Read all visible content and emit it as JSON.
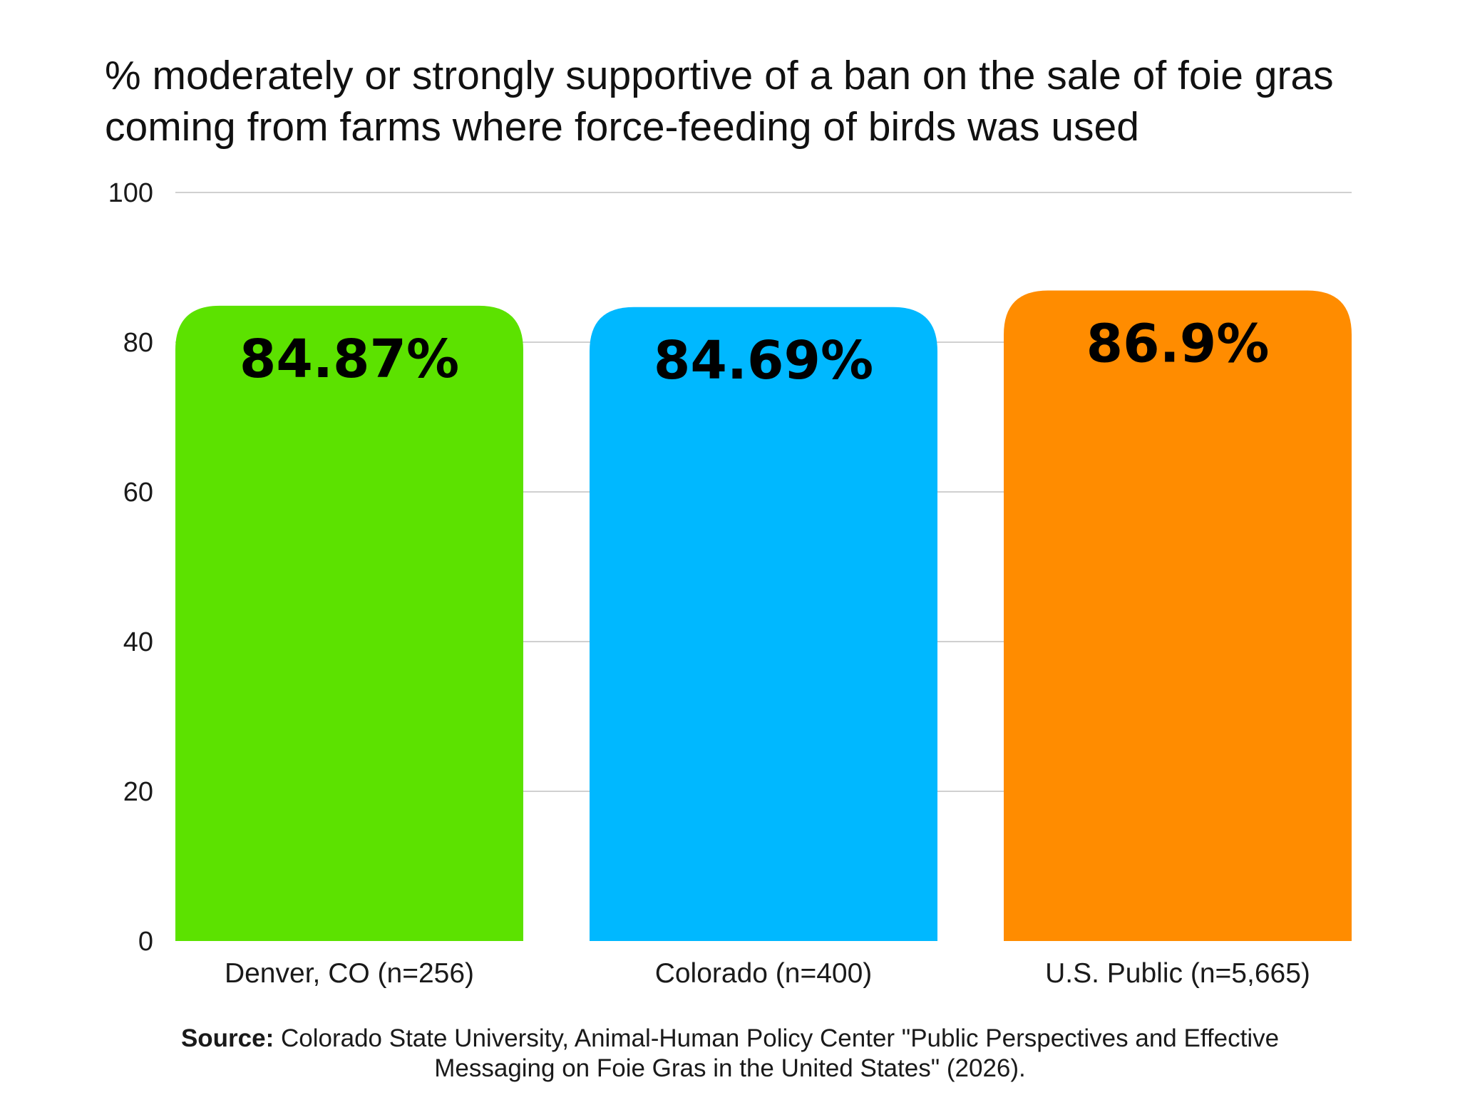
{
  "chart_data": {
    "type": "bar",
    "title": "% moderately or strongly supportive of a ban on the sale of foie gras coming from farms where force-feeding of birds was used",
    "xlabel": "",
    "ylabel": "",
    "categories": [
      "Denver, CO (n=256)",
      "Colorado (n=400)",
      "U.S. Public (n=5,665)"
    ],
    "values": [
      84.87,
      84.69,
      86.9
    ],
    "data_labels": [
      "84.87%",
      "84.69%",
      "86.9%"
    ],
    "colors": [
      "#5ce200",
      "#00b8ff",
      "#ff8c00"
    ],
    "ylim": [
      0,
      100
    ],
    "yticks": [
      0,
      20,
      40,
      60,
      80,
      100
    ],
    "grid": true,
    "legend": "none"
  },
  "source": {
    "label": "Source:",
    "text": " Colorado State University, Animal-Human Policy Center \"Public Perspectives and Effective Messaging on Foie Gras in the United States\" (2026)."
  }
}
